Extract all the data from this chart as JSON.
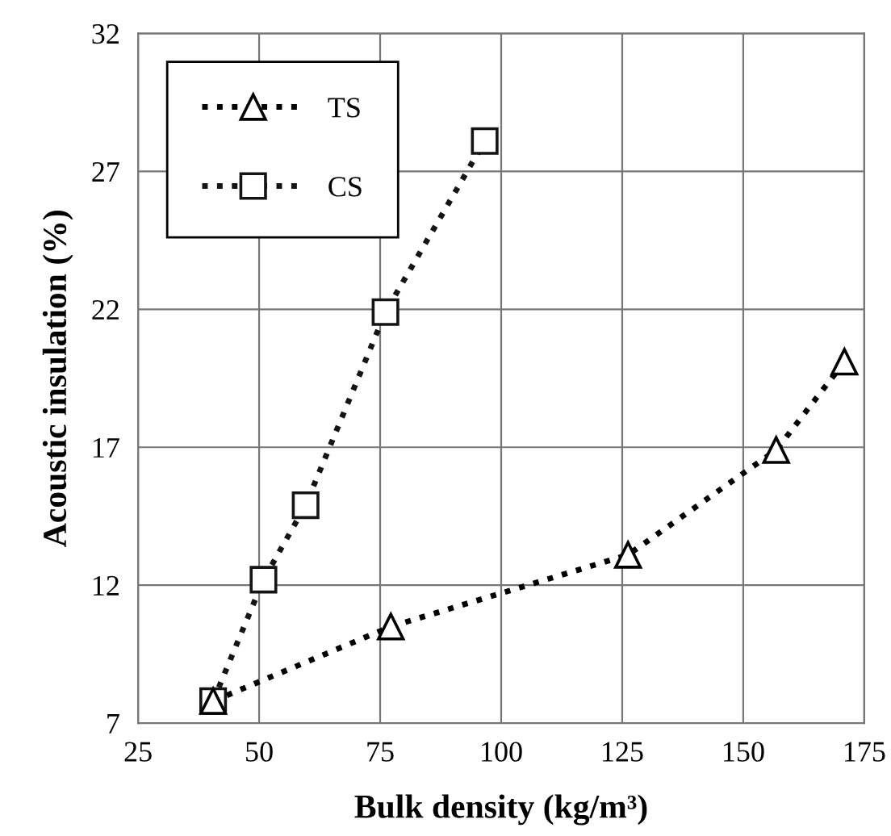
{
  "chart_data": {
    "type": "line",
    "xlabel": "Bulk density (kg/m³)",
    "ylabel": "Acoustic insulation (%)",
    "xlim": [
      25,
      175
    ],
    "xticks": [
      25,
      50,
      75,
      100,
      125,
      150,
      175
    ],
    "ylim": [
      7,
      32
    ],
    "yticks": [
      7,
      12,
      17,
      22,
      27,
      32
    ],
    "grid": true,
    "legend": "top left",
    "line_style": "dotted",
    "series": [
      {
        "name": "TS",
        "color": "#000000",
        "marker": "triangle",
        "x": [
          40.5,
          77.2,
          126.2,
          156.8,
          170.9
        ],
        "values": [
          7.8,
          10.5,
          13.1,
          16.9,
          20.1
        ]
      },
      {
        "name": "CS",
        "color": "#141414",
        "marker": "square",
        "x": [
          40.5,
          50.9,
          59.6,
          76.1,
          96.6
        ],
        "values": [
          7.8,
          12.2,
          14.9,
          21.9,
          28.1
        ]
      }
    ]
  }
}
